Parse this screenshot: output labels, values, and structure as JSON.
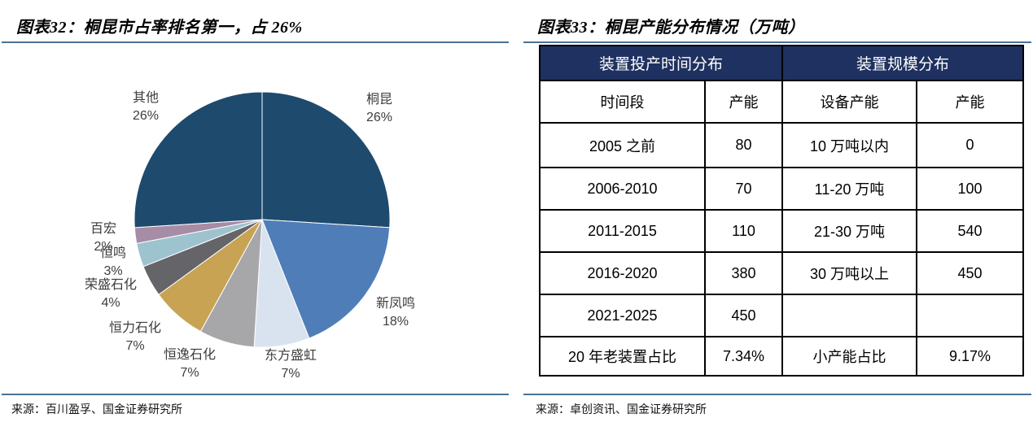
{
  "page": {
    "accent_rule_color": "#4A7195"
  },
  "figures": [
    {
      "id": "figure-32",
      "title": "图表32：桐昆市占率排名第一，占 26%",
      "source": "来源：百川盈孚、国金证券研究所"
    },
    {
      "id": "figure-33",
      "title": "图表33：桐昆产能分布情况（万吨）",
      "source": "来源：卓创资讯、国金证券研究所"
    }
  ],
  "chart_data": [
    {
      "type": "pie",
      "title": "桐昆市占率排名第一，占 26%",
      "unit": "%",
      "start_angle_deg": 0,
      "direction": "clockwise",
      "slices": [
        {
          "label": "桐昆",
          "value": 26,
          "pct_text": "26%",
          "color": "#1E4A6D"
        },
        {
          "label": "新凤鸣",
          "value": 18,
          "pct_text": "18%",
          "color": "#4F7DB8"
        },
        {
          "label": "东方盛虹",
          "value": 7,
          "pct_text": "7%",
          "color": "#D9E3F0"
        },
        {
          "label": "恒逸石化",
          "value": 7,
          "pct_text": "7%",
          "color": "#A7A7A9"
        },
        {
          "label": "恒力石化",
          "value": 7,
          "pct_text": "7%",
          "color": "#C7A353"
        },
        {
          "label": "荣盛石化",
          "value": 4,
          "pct_text": "4%",
          "color": "#656469"
        },
        {
          "label": "恒鸣",
          "value": 3,
          "pct_text": "3%",
          "color": "#9DC3CE"
        },
        {
          "label": "百宏",
          "value": 2,
          "pct_text": "2%",
          "color": "#A78CA6"
        },
        {
          "label": "其他",
          "value": 26,
          "pct_text": "26%",
          "color": "#1E4A6D"
        }
      ]
    },
    {
      "type": "table",
      "header_bg": "#1F3160",
      "header_text_color": "#FFFFFF",
      "header_groups": [
        {
          "label": "装置投产时间分布",
          "colspan": 2
        },
        {
          "label": "装置规模分布",
          "colspan": 2
        }
      ],
      "columns": [
        "时间段",
        "产能",
        "设备产能",
        "产能"
      ],
      "rows": [
        [
          "2005 之前",
          "80",
          "10 万吨以内",
          "0"
        ],
        [
          "2006-2010",
          "70",
          "11-20 万吨",
          "100"
        ],
        [
          "2011-2015",
          "110",
          "21-30 万吨",
          "540"
        ],
        [
          "2016-2020",
          "380",
          "30 万吨以上",
          "450"
        ],
        [
          "2021-2025",
          "450",
          "",
          ""
        ],
        [
          "20 年老装置占比",
          "7.34%",
          "小产能占比",
          "9.17%"
        ]
      ]
    }
  ]
}
